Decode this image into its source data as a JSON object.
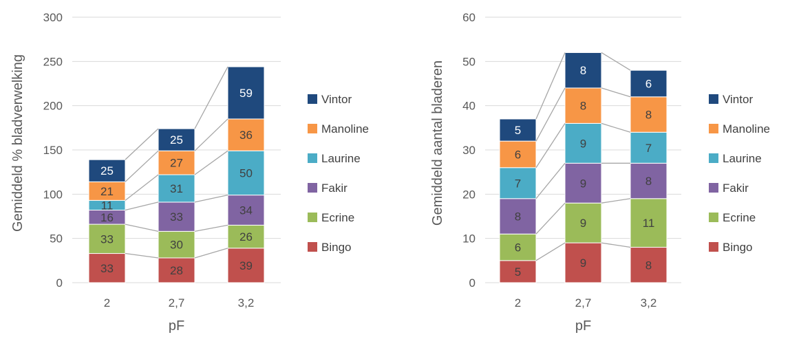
{
  "chart_data": [
    {
      "type": "bar",
      "stacked": true,
      "categories": [
        "2",
        "2,7",
        "3,2"
      ],
      "xlabel": "pF",
      "ylabel": "Gemiddeld % bladverwelking",
      "ylim": [
        0,
        300
      ],
      "yticks": [
        0,
        50,
        100,
        150,
        200,
        250,
        300
      ],
      "grid": true,
      "legend": "right",
      "series_lines": true,
      "series": [
        {
          "name": "Bingo",
          "values": [
            33,
            28,
            39
          ],
          "color": "#C0504D"
        },
        {
          "name": "Ecrine",
          "values": [
            33,
            30,
            26
          ],
          "color": "#9BBB59"
        },
        {
          "name": "Fakir",
          "values": [
            16,
            33,
            34
          ],
          "color": "#8064A2"
        },
        {
          "name": "Laurine",
          "values": [
            11,
            31,
            50
          ],
          "color": "#4BACC6"
        },
        {
          "name": "Manoline",
          "values": [
            21,
            27,
            36
          ],
          "color": "#F79646"
        },
        {
          "name": "Vintor",
          "values": [
            25,
            25,
            59
          ],
          "color": "#1F497D"
        }
      ]
    },
    {
      "type": "bar",
      "stacked": true,
      "categories": [
        "2",
        "2,7",
        "3,2"
      ],
      "xlabel": "pF",
      "ylabel": "Gemiddeld aantal bladeren",
      "ylim": [
        0,
        60
      ],
      "yticks": [
        0,
        10,
        20,
        30,
        40,
        50,
        60
      ],
      "grid": true,
      "legend": "right",
      "series_lines": true,
      "series": [
        {
          "name": "Bingo",
          "values": [
            5,
            9,
            8
          ],
          "color": "#C0504D"
        },
        {
          "name": "Ecrine",
          "values": [
            6,
            9,
            11
          ],
          "color": "#9BBB59"
        },
        {
          "name": "Fakir",
          "values": [
            8,
            9,
            8
          ],
          "color": "#8064A2"
        },
        {
          "name": "Laurine",
          "values": [
            7,
            9,
            7
          ],
          "color": "#4BACC6"
        },
        {
          "name": "Manoline",
          "values": [
            6,
            8,
            8
          ],
          "color": "#F79646"
        },
        {
          "name": "Vintor",
          "values": [
            5,
            8,
            6
          ],
          "color": "#1F497D"
        }
      ]
    }
  ]
}
